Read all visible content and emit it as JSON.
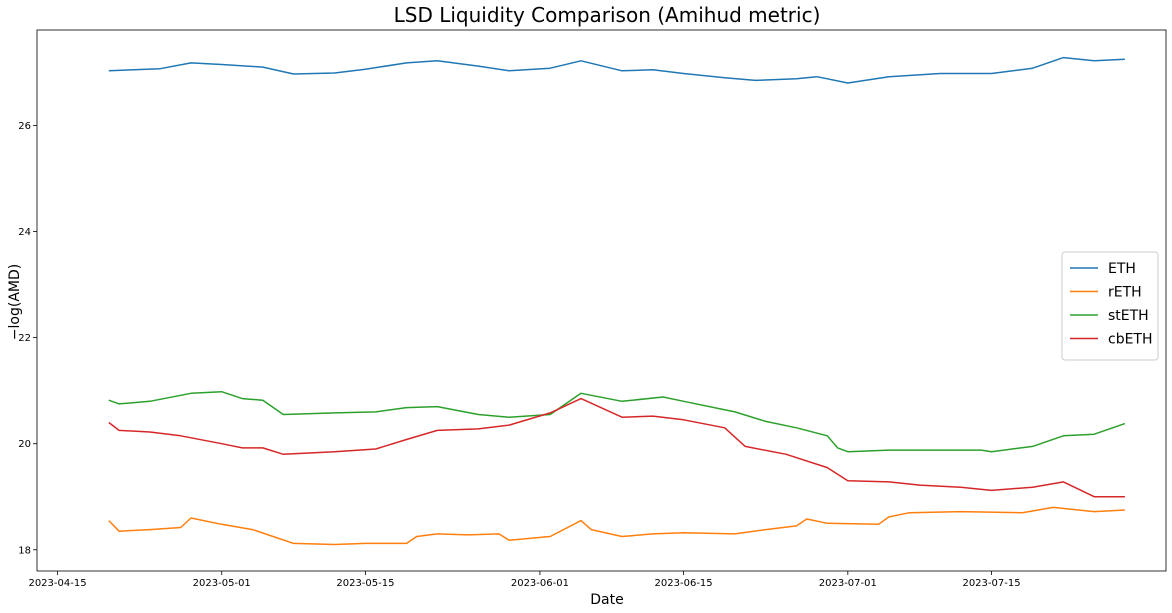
{
  "chart_data": {
    "type": "line",
    "title": "LSD Liquidity Comparison (Amihud metric)",
    "xlabel": "Date",
    "ylabel": "−log(AMD)",
    "x_ticks": [
      "2023-04-15",
      "2023-05-01",
      "2023-05-15",
      "2023-06-01",
      "2023-06-15",
      "2023-07-01",
      "2023-07-15"
    ],
    "y_ticks": [
      18,
      20,
      22,
      24,
      26
    ],
    "xlim": [
      "2023-04-13",
      "2023-08-01"
    ],
    "ylim": [
      17.6,
      27.8
    ],
    "grid": false,
    "legend_position": "center-right",
    "series": [
      {
        "name": "ETH",
        "color": "#1f77b4",
        "points": [
          [
            "2023-04-20",
            27.03
          ],
          [
            "2023-04-25",
            27.07
          ],
          [
            "2023-04-28",
            27.18
          ],
          [
            "2023-05-01",
            27.15
          ],
          [
            "2023-05-05",
            27.1
          ],
          [
            "2023-05-08",
            26.97
          ],
          [
            "2023-05-12",
            26.99
          ],
          [
            "2023-05-15",
            27.06
          ],
          [
            "2023-05-19",
            27.18
          ],
          [
            "2023-05-22",
            27.22
          ],
          [
            "2023-05-26",
            27.12
          ],
          [
            "2023-05-29",
            27.03
          ],
          [
            "2023-06-02",
            27.08
          ],
          [
            "2023-06-05",
            27.22
          ],
          [
            "2023-06-09",
            27.03
          ],
          [
            "2023-06-12",
            27.05
          ],
          [
            "2023-06-15",
            26.98
          ],
          [
            "2023-06-19",
            26.9
          ],
          [
            "2023-06-22",
            26.85
          ],
          [
            "2023-06-26",
            26.88
          ],
          [
            "2023-06-28",
            26.92
          ],
          [
            "2023-07-01",
            26.8
          ],
          [
            "2023-07-05",
            26.92
          ],
          [
            "2023-07-10",
            26.98
          ],
          [
            "2023-07-15",
            26.98
          ],
          [
            "2023-07-19",
            27.08
          ],
          [
            "2023-07-22",
            27.28
          ],
          [
            "2023-07-25",
            27.22
          ],
          [
            "2023-07-28",
            27.25
          ]
        ]
      },
      {
        "name": "rETH",
        "color": "#ff7f0e",
        "points": [
          [
            "2023-04-20",
            18.55
          ],
          [
            "2023-04-21",
            18.35
          ],
          [
            "2023-04-24",
            18.38
          ],
          [
            "2023-04-27",
            18.42
          ],
          [
            "2023-04-28",
            18.6
          ],
          [
            "2023-05-01",
            18.48
          ],
          [
            "2023-05-04",
            18.38
          ],
          [
            "2023-05-06",
            18.25
          ],
          [
            "2023-05-08",
            18.12
          ],
          [
            "2023-05-12",
            18.1
          ],
          [
            "2023-05-15",
            18.12
          ],
          [
            "2023-05-19",
            18.12
          ],
          [
            "2023-05-20",
            18.25
          ],
          [
            "2023-05-22",
            18.3
          ],
          [
            "2023-05-25",
            18.28
          ],
          [
            "2023-05-28",
            18.3
          ],
          [
            "2023-05-29",
            18.18
          ],
          [
            "2023-06-02",
            18.25
          ],
          [
            "2023-06-05",
            18.55
          ],
          [
            "2023-06-06",
            18.38
          ],
          [
            "2023-06-09",
            18.25
          ],
          [
            "2023-06-12",
            18.3
          ],
          [
            "2023-06-15",
            18.32
          ],
          [
            "2023-06-20",
            18.3
          ],
          [
            "2023-06-23",
            18.38
          ],
          [
            "2023-06-26",
            18.45
          ],
          [
            "2023-06-27",
            18.58
          ],
          [
            "2023-06-29",
            18.5
          ],
          [
            "2023-07-04",
            18.48
          ],
          [
            "2023-07-05",
            18.62
          ],
          [
            "2023-07-07",
            18.7
          ],
          [
            "2023-07-12",
            18.72
          ],
          [
            "2023-07-18",
            18.7
          ],
          [
            "2023-07-21",
            18.8
          ],
          [
            "2023-07-25",
            18.72
          ],
          [
            "2023-07-28",
            18.75
          ]
        ]
      },
      {
        "name": "stETH",
        "color": "#2ca02c",
        "points": [
          [
            "2023-04-20",
            20.82
          ],
          [
            "2023-04-21",
            20.75
          ],
          [
            "2023-04-24",
            20.8
          ],
          [
            "2023-04-28",
            20.95
          ],
          [
            "2023-05-01",
            20.98
          ],
          [
            "2023-05-03",
            20.85
          ],
          [
            "2023-05-05",
            20.82
          ],
          [
            "2023-05-07",
            20.55
          ],
          [
            "2023-05-12",
            20.58
          ],
          [
            "2023-05-16",
            20.6
          ],
          [
            "2023-05-19",
            20.68
          ],
          [
            "2023-05-22",
            20.7
          ],
          [
            "2023-05-26",
            20.55
          ],
          [
            "2023-05-29",
            20.5
          ],
          [
            "2023-06-02",
            20.55
          ],
          [
            "2023-06-05",
            20.95
          ],
          [
            "2023-06-09",
            20.8
          ],
          [
            "2023-06-13",
            20.88
          ],
          [
            "2023-06-15",
            20.8
          ],
          [
            "2023-06-20",
            20.6
          ],
          [
            "2023-06-23",
            20.42
          ],
          [
            "2023-06-26",
            20.3
          ],
          [
            "2023-06-29",
            20.15
          ],
          [
            "2023-06-30",
            19.92
          ],
          [
            "2023-07-01",
            19.85
          ],
          [
            "2023-07-05",
            19.88
          ],
          [
            "2023-07-10",
            19.88
          ],
          [
            "2023-07-14",
            19.88
          ],
          [
            "2023-07-15",
            19.85
          ],
          [
            "2023-07-19",
            19.95
          ],
          [
            "2023-07-22",
            20.15
          ],
          [
            "2023-07-25",
            20.18
          ],
          [
            "2023-07-28",
            20.38
          ]
        ]
      },
      {
        "name": "cbETH",
        "color": "#d62728",
        "points": [
          [
            "2023-04-20",
            20.4
          ],
          [
            "2023-04-21",
            20.25
          ],
          [
            "2023-04-24",
            20.22
          ],
          [
            "2023-04-27",
            20.15
          ],
          [
            "2023-05-01",
            20.0
          ],
          [
            "2023-05-03",
            19.92
          ],
          [
            "2023-05-05",
            19.92
          ],
          [
            "2023-05-07",
            19.8
          ],
          [
            "2023-05-12",
            19.85
          ],
          [
            "2023-05-16",
            19.9
          ],
          [
            "2023-05-19",
            20.08
          ],
          [
            "2023-05-22",
            20.25
          ],
          [
            "2023-05-26",
            20.28
          ],
          [
            "2023-05-29",
            20.35
          ],
          [
            "2023-06-02",
            20.58
          ],
          [
            "2023-06-05",
            20.85
          ],
          [
            "2023-06-09",
            20.5
          ],
          [
            "2023-06-12",
            20.52
          ],
          [
            "2023-06-15",
            20.45
          ],
          [
            "2023-06-19",
            20.3
          ],
          [
            "2023-06-21",
            19.95
          ],
          [
            "2023-06-25",
            19.8
          ],
          [
            "2023-06-29",
            19.55
          ],
          [
            "2023-07-01",
            19.3
          ],
          [
            "2023-07-05",
            19.28
          ],
          [
            "2023-07-08",
            19.22
          ],
          [
            "2023-07-12",
            19.18
          ],
          [
            "2023-07-15",
            19.12
          ],
          [
            "2023-07-19",
            19.18
          ],
          [
            "2023-07-22",
            19.28
          ],
          [
            "2023-07-25",
            19.0
          ],
          [
            "2023-07-28",
            19.0
          ]
        ]
      }
    ]
  }
}
